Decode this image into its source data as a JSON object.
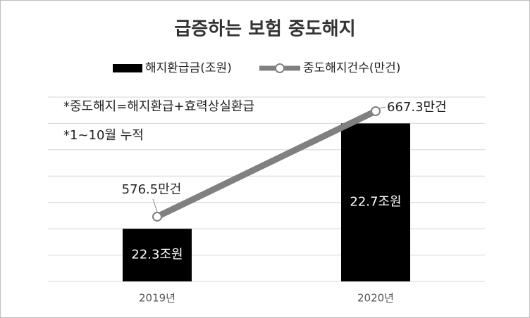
{
  "chart_data": {
    "type": "bar_line",
    "title": "급증하는 보험 중도해지",
    "annotations": [
      "*중도해지=해지환급+효력상실환급",
      "*1~10월 누적"
    ],
    "categories": [
      "2019년",
      "2020년"
    ],
    "grid": true,
    "ylim": [
      22.1,
      22.8
    ],
    "y2lim": [
      520.8,
      679.4
    ],
    "series": [
      {
        "name": "해지환급금(조원)",
        "type": "bar",
        "color": "#000000",
        "values": [
          22.3,
          22.7
        ],
        "value_labels": [
          "22.3조원",
          "22.7조원"
        ]
      },
      {
        "name": "중도해지건수(만건)",
        "type": "line",
        "axis": "y2",
        "color": "#808080",
        "values": [
          576.5,
          667.3
        ],
        "value_labels": [
          "576.5만건",
          "667.3만건"
        ]
      }
    ]
  }
}
